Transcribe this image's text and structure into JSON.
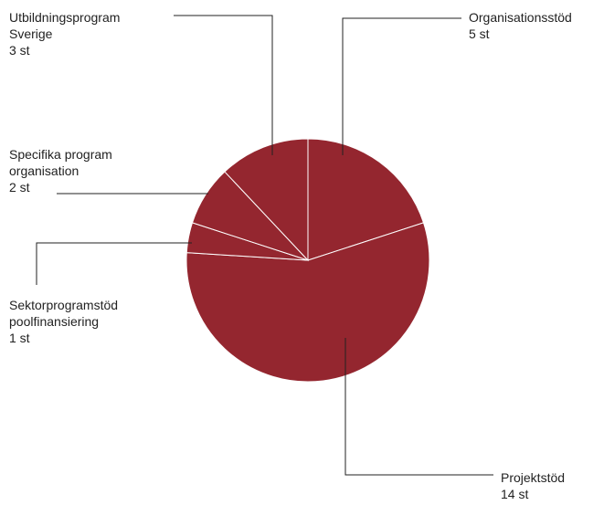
{
  "chart_data": {
    "type": "pie",
    "categories": [
      "Organisationsstöd",
      "Projektstöd",
      "Sektorprogramstöd poolfinansiering",
      "Specifika program organisation",
      "Utbildningsprogram Sverige"
    ],
    "values": [
      5,
      14,
      1,
      2,
      3
    ],
    "value_labels": [
      "5 st",
      "14 st",
      "1 st",
      "2 st",
      "3 st"
    ],
    "color": "#94262f"
  }
}
